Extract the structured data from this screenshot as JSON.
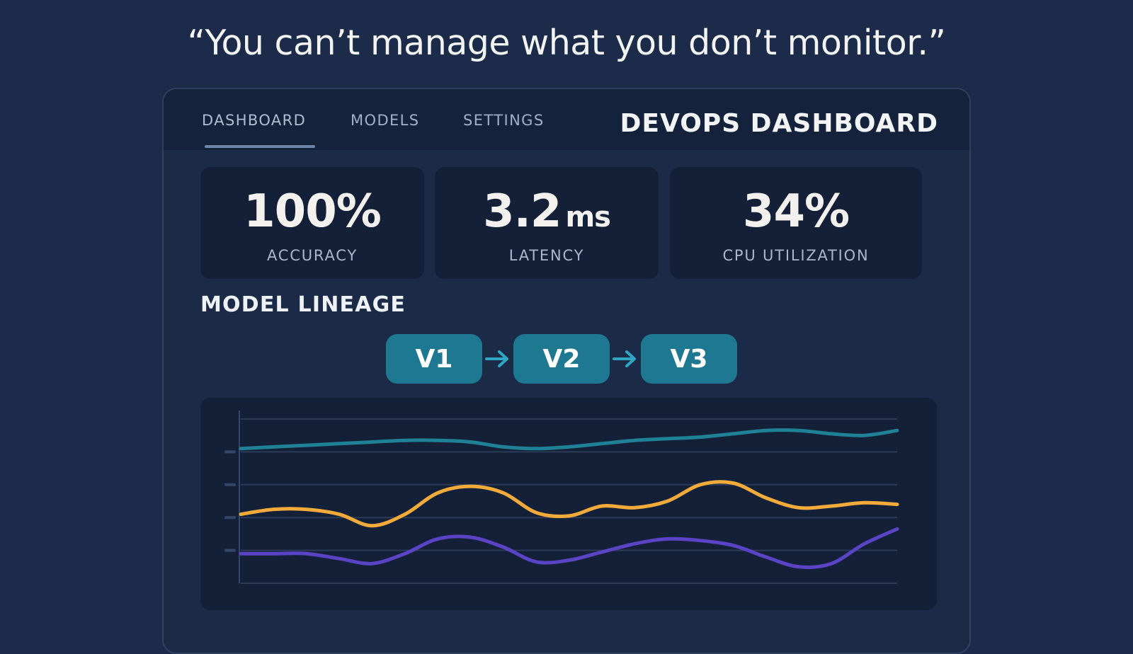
{
  "quote": "“You can’t manage what you don’t monitor.”",
  "nav": {
    "tabs": [
      {
        "label": "DASHBOARD",
        "active": true
      },
      {
        "label": "MODELS",
        "active": false
      },
      {
        "label": "SETTINGS",
        "active": false
      }
    ],
    "title": "DEVOPS DASHBOARD"
  },
  "metrics": [
    {
      "value": "100%",
      "unit": "",
      "label": "ACCURACY"
    },
    {
      "value": "3.2",
      "unit": "ms",
      "label": "LATENCY"
    },
    {
      "value": "34%",
      "unit": "",
      "label": "CPU UTILIZATION"
    }
  ],
  "lineage": {
    "title": "MODEL LINEAGE",
    "versions": [
      "V1",
      "V2",
      "V3"
    ],
    "arrow_icon": "arrow-right-icon"
  },
  "colors": {
    "background": "#1b2b49",
    "accent": "#1e7891",
    "teal_series": "#1f8195",
    "orange_series": "#f2ab3a",
    "purple_series": "#5a43c4"
  },
  "chart_data": {
    "type": "line",
    "title": "",
    "xlabel": "",
    "ylabel": "",
    "grid": true,
    "x": [
      0,
      1,
      2,
      3,
      4,
      5,
      6,
      7,
      8,
      9,
      10,
      11,
      12,
      13,
      14,
      15,
      16,
      17,
      18,
      19,
      20
    ],
    "ylim": [
      0,
      100
    ],
    "series": [
      {
        "color": "#1f8195",
        "values": [
          82,
          83,
          84,
          85,
          86,
          87,
          87,
          86,
          83,
          82,
          83,
          85,
          87,
          88,
          89,
          91,
          93,
          93,
          91,
          90,
          93
        ]
      },
      {
        "color": "#f2ab3a",
        "values": [
          42,
          45,
          45,
          42,
          35,
          42,
          55,
          59,
          55,
          43,
          41,
          47,
          46,
          50,
          60,
          61,
          52,
          46,
          47,
          49,
          48
        ]
      },
      {
        "color": "#5a43c4",
        "values": [
          18,
          18,
          18,
          15,
          12,
          18,
          27,
          28,
          22,
          13,
          14,
          19,
          24,
          27,
          26,
          23,
          16,
          10,
          12,
          24,
          33
        ]
      }
    ]
  }
}
